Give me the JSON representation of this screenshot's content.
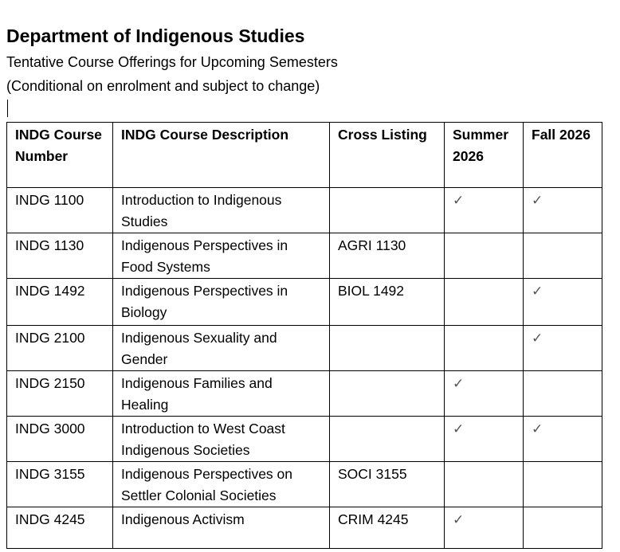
{
  "title": "Department of Indigenous Studies",
  "subtitle": "Tentative Course Offerings for Upcoming Semesters",
  "note": "(Conditional on enrolment and subject to change)",
  "check_symbol": "✓",
  "table": {
    "headers": [
      "INDG Course Number",
      "INDG Course Description",
      "Cross Listing",
      "Summer 2026",
      "Fall 2026"
    ],
    "rows": [
      {
        "number": "INDG 1100",
        "description": "Introduction to Indigenous Studies",
        "cross": "",
        "summer": "✓",
        "fall": "✓"
      },
      {
        "number": "INDG 1130",
        "description": "Indigenous Perspectives in Food Systems",
        "cross": "AGRI 1130",
        "summer": "",
        "fall": ""
      },
      {
        "number": "INDG 1492",
        "description": "Indigenous Perspectives in Biology",
        "cross": "BIOL 1492",
        "summer": "",
        "fall": "✓"
      },
      {
        "number": "INDG 2100",
        "description": "Indigenous Sexuality and Gender",
        "cross": "",
        "summer": "",
        "fall": "✓"
      },
      {
        "number": "INDG 2150",
        "description": "Indigenous Families and Healing",
        "cross": "",
        "summer": "✓",
        "fall": ""
      },
      {
        "number": "INDG 3000",
        "description": "Introduction to West Coast Indigenous Societies",
        "cross": "",
        "summer": "✓",
        "fall": "✓"
      },
      {
        "number": "INDG 3155",
        "description": "Indigenous Perspectives on Settler Colonial Societies",
        "cross": "SOCI 3155",
        "summer": "",
        "fall": ""
      },
      {
        "number": "INDG 4245",
        "description": "Indigenous Activism",
        "cross": "CRIM 4245",
        "summer": "✓",
        "fall": ""
      }
    ]
  }
}
